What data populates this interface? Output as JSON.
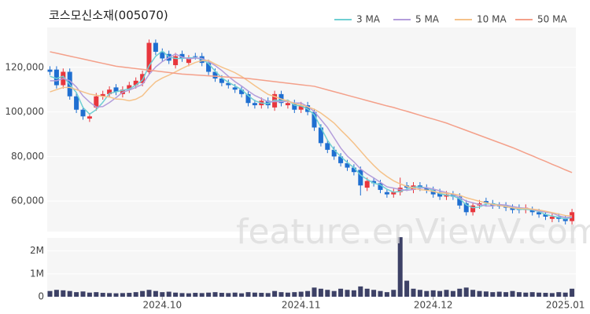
{
  "title": "코스모신소재(005070)",
  "watermark": "feature.enViewV.com",
  "chart_data": [
    {
      "type": "candlestick",
      "up_color": "#e8363d",
      "down_color": "#1f6fd1",
      "ylim": [
        46300,
        137900
      ],
      "yticks": [
        {
          "value": 60000,
          "label": "60,000"
        },
        {
          "value": 80000,
          "label": "80,000"
        },
        {
          "value": 100000,
          "label": "100,000"
        },
        {
          "value": 120000,
          "label": "120,000"
        }
      ],
      "grid": true,
      "legend": "top-right",
      "open": [
        119000,
        119000,
        112000,
        118000,
        107000,
        101000,
        97000,
        102000,
        107000,
        108000,
        111000,
        108000,
        110000,
        112000,
        113000,
        118000,
        131000,
        127000,
        126000,
        121000,
        126000,
        122000,
        125000,
        125000,
        122000,
        118000,
        115000,
        113000,
        111000,
        110000,
        108000,
        104000,
        103000,
        105000,
        102000,
        108000,
        103000,
        104000,
        101000,
        103000,
        100000,
        93000,
        86000,
        83000,
        80000,
        77000,
        75000,
        74000,
        66000,
        69000,
        68000,
        64000,
        63000,
        64000,
        67000,
        65000,
        67000,
        66000,
        65000,
        64000,
        62000,
        63000,
        62000,
        59000,
        55000,
        58000,
        60000,
        59000,
        58000,
        58000,
        57000,
        57000,
        56000,
        56000,
        55000,
        54000,
        52000,
        53000,
        52000,
        51000
      ],
      "high": [
        120500,
        120500,
        119500,
        119500,
        108500,
        102500,
        99500,
        108500,
        109500,
        111500,
        112500,
        111500,
        113500,
        115500,
        118500,
        132500,
        132500,
        128500,
        127500,
        126500,
        127500,
        125500,
        126500,
        126500,
        123500,
        119500,
        116500,
        114500,
        112500,
        111500,
        109500,
        105500,
        106500,
        106500,
        109500,
        109500,
        105500,
        105500,
        104500,
        104500,
        101500,
        94500,
        87500,
        84500,
        81500,
        78500,
        76500,
        75500,
        70500,
        70500,
        69500,
        65500,
        65500,
        70500,
        68500,
        68500,
        68500,
        67500,
        66500,
        65500,
        64500,
        64500,
        63500,
        60500,
        59500,
        60500,
        61500,
        60500,
        59500,
        59500,
        58500,
        58500,
        58500,
        57500,
        56500,
        55500,
        54500,
        54500,
        53500,
        56500
      ],
      "low": [
        116500,
        110500,
        110500,
        105500,
        99500,
        96500,
        95500,
        100500,
        105500,
        106500,
        107500,
        106500,
        108500,
        110500,
        111500,
        116500,
        125500,
        122500,
        121500,
        119500,
        122500,
        120500,
        123500,
        120500,
        116500,
        113500,
        111500,
        110500,
        108500,
        106500,
        102500,
        101500,
        101500,
        101500,
        100500,
        102500,
        101500,
        99500,
        99500,
        98500,
        91500,
        84500,
        81500,
        78500,
        75500,
        73500,
        71500,
        62500,
        64500,
        66500,
        63500,
        61500,
        61500,
        62500,
        64500,
        63500,
        64500,
        63500,
        61500,
        60500,
        60500,
        60500,
        56500,
        53500,
        53500,
        56500,
        57500,
        56500,
        56500,
        55500,
        54500,
        54500,
        54500,
        53500,
        52500,
        51500,
        50500,
        50500,
        49500,
        49500
      ],
      "close": [
        118000,
        112000,
        118000,
        107000,
        101000,
        98000,
        98000,
        107000,
        108000,
        110000,
        109000,
        110000,
        112000,
        114000,
        117000,
        131000,
        127000,
        124000,
        123000,
        125000,
        124000,
        124000,
        125000,
        122000,
        118000,
        115000,
        113000,
        112000,
        110000,
        108000,
        104000,
        103000,
        105000,
        103000,
        108000,
        104000,
        104000,
        101000,
        103000,
        100000,
        93000,
        86000,
        83000,
        80000,
        77000,
        75000,
        73000,
        67000,
        69000,
        68000,
        65000,
        63000,
        64000,
        66000,
        66000,
        67000,
        66000,
        65000,
        63000,
        62000,
        63000,
        62000,
        58000,
        55000,
        58000,
        59000,
        59000,
        58000,
        58000,
        57000,
        56000,
        56000,
        57000,
        55000,
        54000,
        53000,
        53000,
        52000,
        51000,
        55000
      ],
      "series": [
        {
          "name": "3 MA",
          "color": "#6fcfd3",
          "values": [
            116000,
            115000,
            116000,
            112300,
            108700,
            102000,
            99000,
            101000,
            104300,
            108300,
            109000,
            109700,
            110300,
            112000,
            114300,
            120700,
            125000,
            127300,
            124700,
            124000,
            124000,
            124300,
            124300,
            123700,
            121700,
            118300,
            115300,
            113300,
            111700,
            110000,
            107300,
            105000,
            104000,
            103700,
            105300,
            105000,
            105300,
            103000,
            102700,
            101300,
            98700,
            93000,
            87300,
            83000,
            80000,
            77300,
            75000,
            71700,
            69700,
            68000,
            67300,
            65300,
            64000,
            64300,
            65300,
            66300,
            66300,
            66000,
            64700,
            63300,
            62700,
            62300,
            61000,
            58300,
            57000,
            57300,
            58700,
            58700,
            58300,
            57700,
            57000,
            56300,
            56300,
            56000,
            55300,
            54000,
            53300,
            52700,
            52000,
            52700
          ]
        },
        {
          "name": "5 MA",
          "color": "#b39ddb",
          "values": [
            114000,
            114000,
            115000,
            114000,
            111200,
            107200,
            104400,
            102200,
            102400,
            104200,
            106400,
            108800,
            109800,
            111000,
            112400,
            116800,
            120200,
            122600,
            124400,
            126000,
            124600,
            123800,
            124200,
            124000,
            122600,
            120800,
            118600,
            116000,
            113600,
            111600,
            109400,
            107400,
            106000,
            104600,
            104600,
            104600,
            104800,
            104000,
            104000,
            102400,
            100200,
            96600,
            93000,
            88400,
            83800,
            80200,
            77600,
            74400,
            72200,
            70400,
            68400,
            66400,
            65800,
            65200,
            64800,
            65200,
            65800,
            66000,
            65400,
            64600,
            63800,
            63000,
            61600,
            60000,
            59200,
            58400,
            57800,
            57800,
            58400,
            58200,
            57600,
            57000,
            56800,
            56200,
            55600,
            55000,
            54600,
            53400,
            52600,
            52800
          ]
        },
        {
          "name": "10 MA",
          "color": "#f5c28a",
          "values": [
            109000,
            110000,
            111000,
            111000,
            110000,
            109000,
            108000,
            107500,
            107000,
            106700,
            105800,
            105600,
            105000,
            105700,
            107300,
            110600,
            113500,
            115200,
            116500,
            118000,
            119500,
            120900,
            122200,
            123000,
            123100,
            121500,
            120100,
            118900,
            117600,
            115900,
            113900,
            111800,
            109800,
            107900,
            106900,
            105800,
            104900,
            103800,
            103100,
            102300,
            101200,
            99500,
            97300,
            95000,
            91900,
            89000,
            85900,
            82500,
            79100,
            76000,
            73200,
            71000,
            69100,
            67700,
            66600,
            65800,
            65100,
            64900,
            64300,
            63700,
            63500,
            63200,
            62600,
            61500,
            60700,
            59900,
            59200,
            58500,
            58000,
            57500,
            56900,
            56700,
            56600,
            56400,
            56000,
            55400,
            54800,
            54200,
            53500,
            53300
          ]
        },
        {
          "name": "50 MA",
          "color": "#f4a08a",
          "values": [
            127000,
            126350,
            125700,
            125050,
            124400,
            123750,
            123100,
            122450,
            121800,
            121150,
            120500,
            120150,
            119800,
            119450,
            119100,
            118750,
            118400,
            118050,
            117700,
            117350,
            117000,
            116800,
            116600,
            116400,
            116200,
            116000,
            115800,
            115600,
            115400,
            115200,
            115000,
            114650,
            114300,
            113950,
            113600,
            113250,
            112900,
            112550,
            112200,
            111850,
            111500,
            110700,
            109900,
            109100,
            108300,
            107500,
            106700,
            105900,
            105100,
            104300,
            103500,
            102700,
            102000,
            101100,
            100300,
            99400,
            98500,
            97600,
            96800,
            95900,
            95000,
            93900,
            92800,
            91700,
            90600,
            89500,
            88400,
            87300,
            86200,
            85100,
            84000,
            82800,
            81500,
            80300,
            79000,
            77800,
            76500,
            75300,
            74000,
            72800
          ]
        }
      ]
    },
    {
      "type": "bar",
      "color": "#3d4166",
      "ylim": [
        0,
        2570000
      ],
      "yticks": [
        0,
        {
          "value": 1000000,
          "label": "1M"
        },
        {
          "value": 2000000,
          "label": "2M"
        }
      ],
      "xticks": [
        {
          "value": 17,
          "label": "2024.10"
        },
        {
          "value": 38,
          "label": "2024.11"
        },
        {
          "value": 58,
          "label": "2024.12"
        },
        {
          "value": 78,
          "label": "2025.01"
        }
      ],
      "values": [
        250000,
        300000,
        280000,
        250000,
        200000,
        230000,
        180000,
        200000,
        170000,
        160000,
        150000,
        160000,
        170000,
        200000,
        250000,
        300000,
        250000,
        200000,
        220000,
        180000,
        160000,
        150000,
        170000,
        160000,
        180000,
        200000,
        170000,
        160000,
        180000,
        150000,
        200000,
        180000,
        170000,
        160000,
        250000,
        200000,
        180000,
        200000,
        220000,
        250000,
        400000,
        350000,
        300000,
        250000,
        350000,
        300000,
        280000,
        450000,
        350000,
        300000,
        250000,
        200000,
        300000,
        2600000,
        700000,
        350000,
        300000,
        250000,
        280000,
        250000,
        300000,
        250000,
        350000,
        400000,
        300000,
        250000,
        230000,
        200000,
        220000,
        200000,
        250000,
        200000,
        180000,
        200000,
        180000,
        170000,
        160000,
        200000,
        180000,
        350000
      ]
    }
  ]
}
